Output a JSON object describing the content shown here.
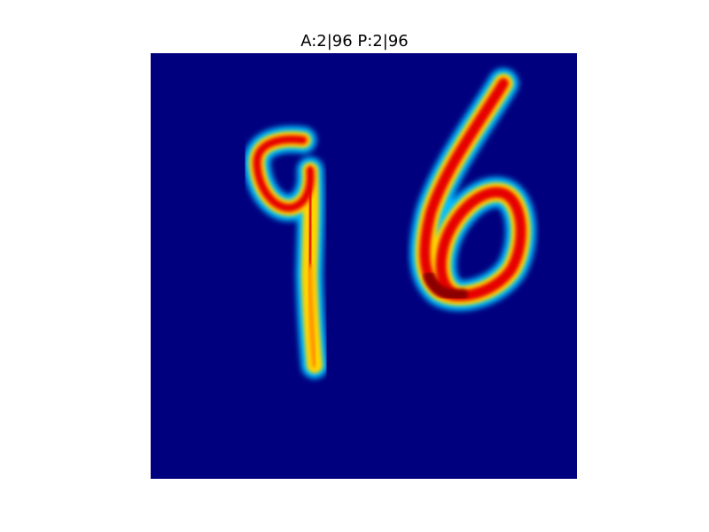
{
  "figure": {
    "title": "A:2|96 P:2|96"
  },
  "image": {
    "description_icon": "heatmap-image",
    "colormap": "jet",
    "colors": {
      "background": "#00007f",
      "outer_glow": "#00bfff",
      "mid": "#ffd400",
      "core": "#e60000",
      "deep_core": "#8a0000"
    }
  }
}
